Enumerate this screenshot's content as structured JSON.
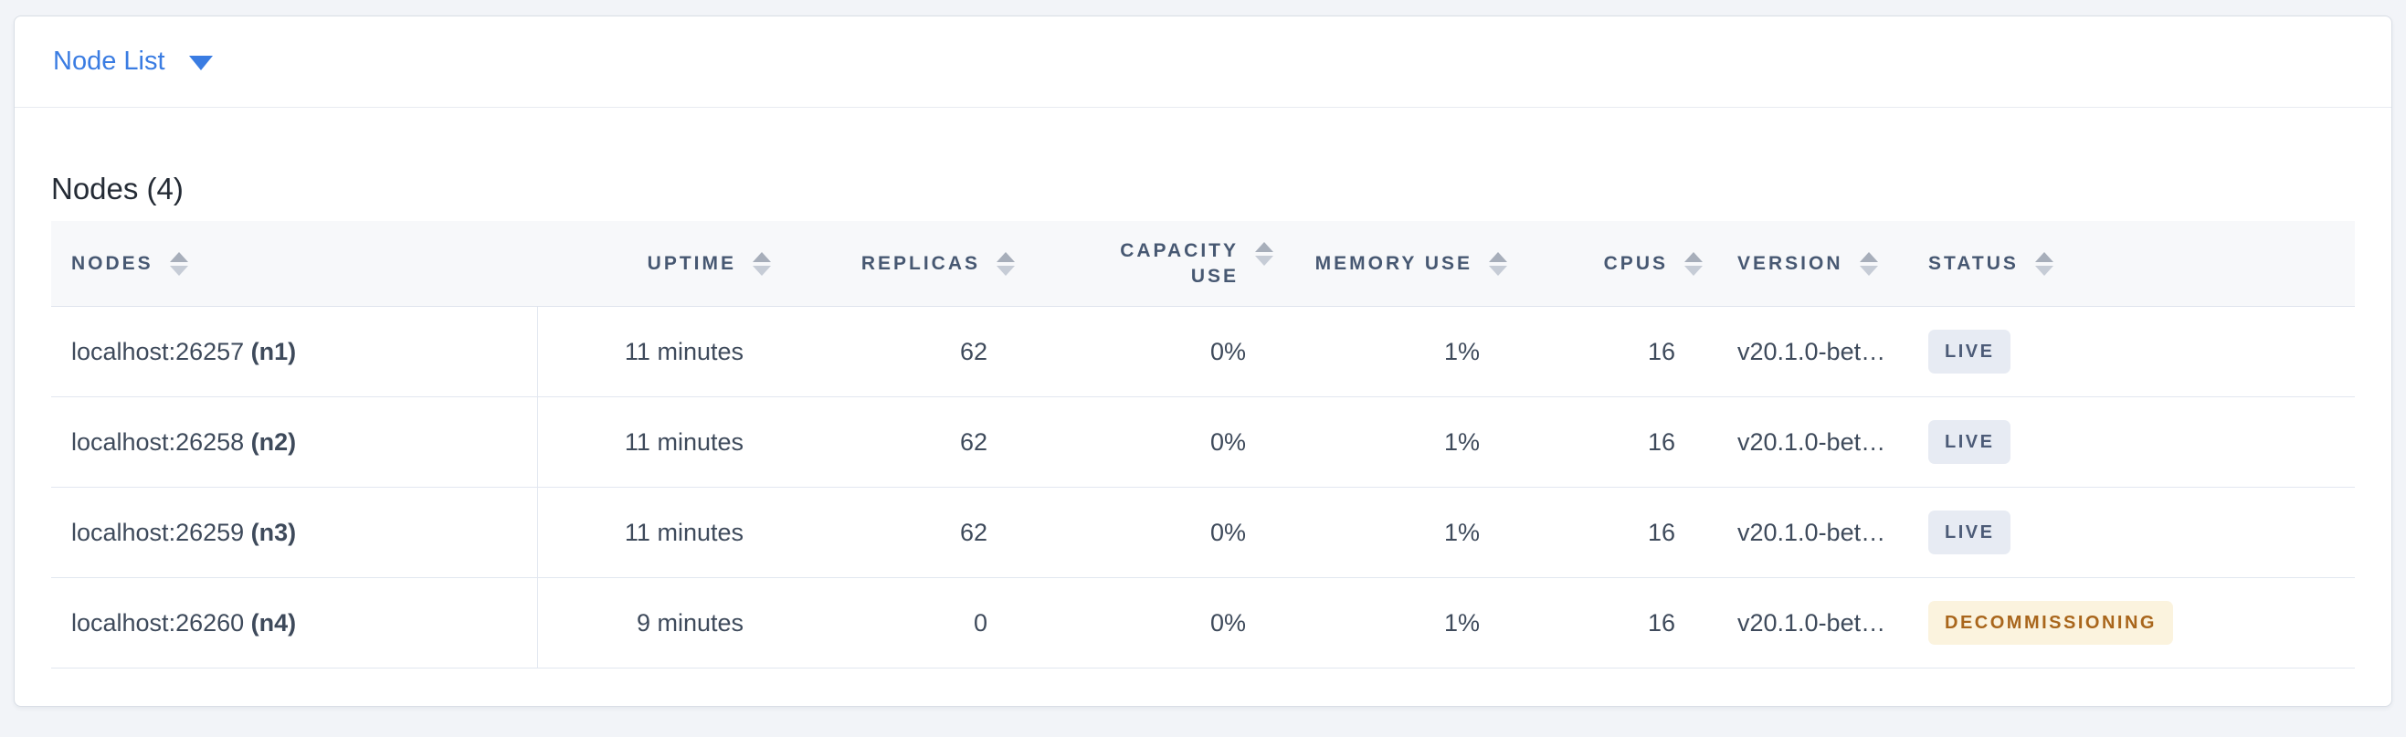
{
  "colors": {
    "accent_blue": "#3a7ce2",
    "header_text": "#475872",
    "body_text": "#3e4a5b",
    "badge_live_bg": "#e7ebf3",
    "badge_live_text": "#4c5b77",
    "badge_decommissioning_bg": "#fbf3de",
    "badge_decommissioning_text": "#a9661c",
    "page_background": "#f2f4f8"
  },
  "icons": {
    "dropdown_caret": "caret-down",
    "column_sort": "sort-arrows-up-down"
  },
  "view_selector": {
    "label": "Node List"
  },
  "summary": {
    "title": "Nodes (4)"
  },
  "table": {
    "columns": [
      {
        "label": "NODES"
      },
      {
        "label": "UPTIME"
      },
      {
        "label": "REPLICAS"
      },
      {
        "label": "CAPACITY USE"
      },
      {
        "label": "MEMORY USE"
      },
      {
        "label": "CPUS"
      },
      {
        "label": "VERSION"
      },
      {
        "label": "STATUS"
      }
    ],
    "rows": [
      {
        "address": "localhost:26257",
        "node_id": " (n1)",
        "uptime": "11 minutes",
        "replicas": "62",
        "capacity_use": "0%",
        "memory_use": "1%",
        "cpus": "16",
        "version": "v20.1.0-bet…",
        "status": "LIVE"
      },
      {
        "address": "localhost:26258",
        "node_id": " (n2)",
        "uptime": "11 minutes",
        "replicas": "62",
        "capacity_use": "0%",
        "memory_use": "1%",
        "cpus": "16",
        "version": "v20.1.0-bet…",
        "status": "LIVE"
      },
      {
        "address": "localhost:26259",
        "node_id": " (n3)",
        "uptime": "11 minutes",
        "replicas": "62",
        "capacity_use": "0%",
        "memory_use": "1%",
        "cpus": "16",
        "version": "v20.1.0-bet…",
        "status": "LIVE"
      },
      {
        "address": "localhost:26260",
        "node_id": " (n4)",
        "uptime": "9 minutes",
        "replicas": "0",
        "capacity_use": "0%",
        "memory_use": "1%",
        "cpus": "16",
        "version": "v20.1.0-bet…",
        "status": "DECOMMISSIONING"
      }
    ]
  }
}
